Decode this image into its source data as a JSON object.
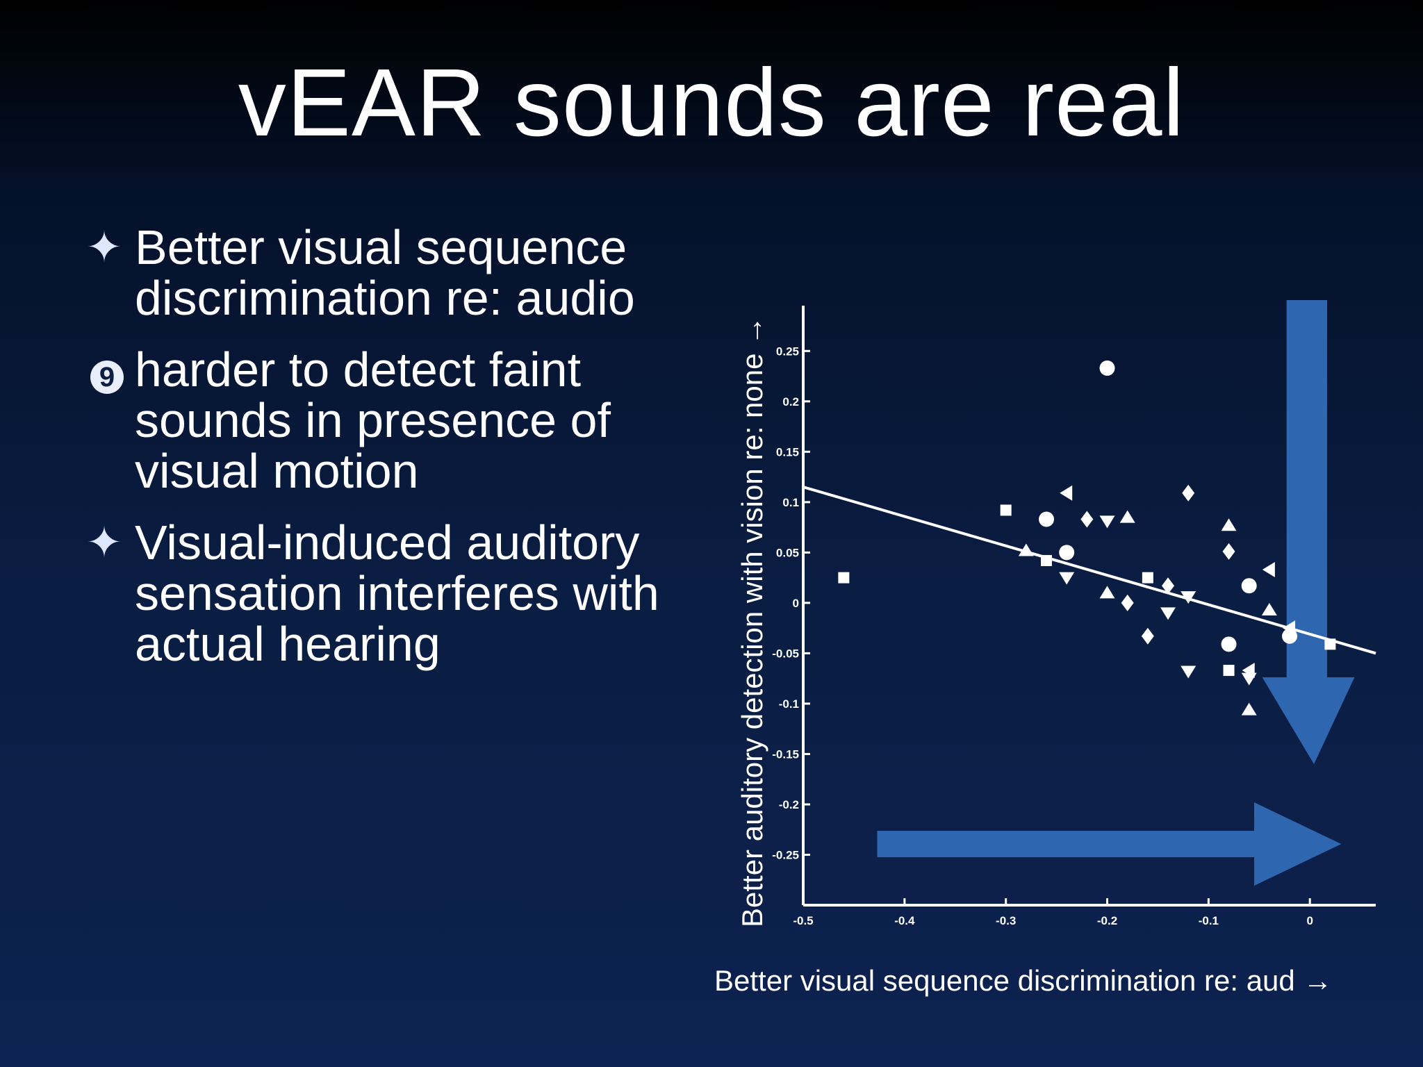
{
  "slide": {
    "title": "vEAR sounds are real",
    "bullets": [
      {
        "marker": "✦",
        "marker_icon": "four-point-star-icon",
        "text": "Better visual sequence discrimination re: audio"
      },
      {
        "marker": "9",
        "marker_icon": "circled-nine-icon",
        "text": "harder to detect faint sounds in presence of visual motion"
      },
      {
        "marker": "✦",
        "marker_icon": "four-point-star-icon",
        "text": "Visual-induced auditory sensation interferes with actual hearing"
      }
    ]
  },
  "chart_data": {
    "type": "scatter",
    "xlabel": "Better visual sequence discrimination re: aud →",
    "ylabel": "Better auditory detection with vision re: none →",
    "xlim": [
      -0.5,
      0.065
    ],
    "ylim": [
      -0.3,
      0.295
    ],
    "xticks": [
      -0.5,
      -0.4,
      -0.3,
      -0.2,
      -0.1,
      0
    ],
    "xtick_labels": [
      "-0.5",
      "-0.4",
      "-0.3",
      "-0.2",
      "-0.1",
      "0"
    ],
    "yticks": [
      0.25,
      0.2,
      0.15,
      0.1,
      0.05,
      0,
      -0.05,
      -0.1,
      -0.15,
      -0.2,
      -0.25
    ],
    "ytick_labels": [
      "0.25",
      "0.2",
      "0.15",
      "0.1",
      "0.05",
      "0",
      "-0.05",
      "-0.1",
      "-0.15",
      "-0.2",
      "-0.25"
    ],
    "grid": false,
    "colors": {
      "points": "#ffffff",
      "fit_line": "#ffffff",
      "arrows": "#2e67b0",
      "axes": "#ffffff"
    },
    "fit_line": {
      "x": [
        -0.5,
        0.065
      ],
      "y": [
        0.115,
        -0.05
      ]
    },
    "series": [
      {
        "marker": "square",
        "points": [
          [
            -0.46,
            0.025
          ],
          [
            -0.3,
            0.092
          ],
          [
            -0.26,
            0.042
          ],
          [
            -0.16,
            0.025
          ],
          [
            -0.08,
            -0.067
          ],
          [
            0.02,
            -0.041
          ]
        ]
      },
      {
        "marker": "circle",
        "points": [
          [
            -0.2,
            0.233
          ],
          [
            -0.26,
            0.083
          ],
          [
            -0.24,
            0.05
          ],
          [
            -0.06,
            0.017
          ],
          [
            -0.08,
            -0.041
          ],
          [
            -0.02,
            -0.033
          ]
        ]
      },
      {
        "marker": "triangle-up",
        "points": [
          [
            -0.28,
            0.052
          ],
          [
            -0.18,
            0.085
          ],
          [
            -0.2,
            0.01
          ],
          [
            -0.08,
            0.077
          ],
          [
            -0.04,
            -0.007
          ],
          [
            -0.06,
            -0.106
          ]
        ]
      },
      {
        "marker": "triangle-down",
        "points": [
          [
            -0.2,
            0.081
          ],
          [
            -0.24,
            0.025
          ],
          [
            -0.14,
            -0.01
          ],
          [
            -0.12,
            0.006
          ],
          [
            -0.12,
            -0.068
          ],
          [
            -0.06,
            -0.075
          ]
        ]
      },
      {
        "marker": "diamond",
        "points": [
          [
            -0.22,
            0.083
          ],
          [
            -0.18,
            0.0
          ],
          [
            -0.12,
            0.109
          ],
          [
            -0.14,
            0.017
          ],
          [
            -0.16,
            -0.033
          ],
          [
            -0.08,
            0.051
          ]
        ]
      },
      {
        "marker": "triangle-left",
        "points": [
          [
            -0.24,
            0.109
          ],
          [
            -0.04,
            0.033
          ],
          [
            -0.06,
            -0.067
          ],
          [
            -0.02,
            -0.025
          ]
        ]
      }
    ]
  }
}
